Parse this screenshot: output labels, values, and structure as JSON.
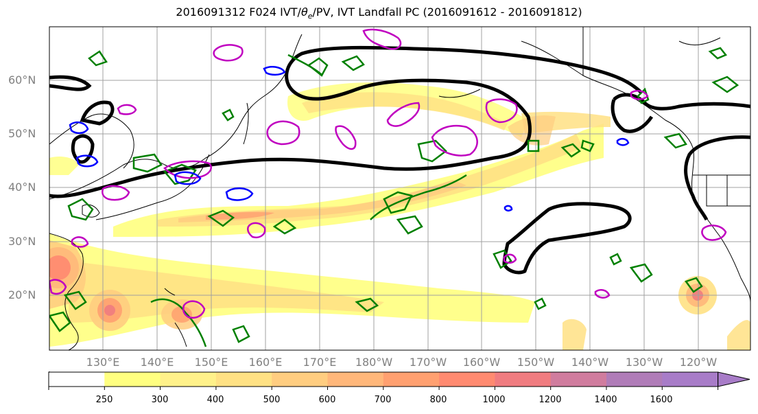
{
  "title": {
    "prefix": "2016091312 F024 IVT/",
    "theta": "θ",
    "theta_sub": "e",
    "suffix": "/PV, IVT Landfall PC (2016091612 - 2016091812)"
  },
  "lat_labels": [
    "60°N",
    "50°N",
    "40°N",
    "30°N",
    "20°N"
  ],
  "lon_labels": [
    "130°E",
    "140°E",
    "150°E",
    "160°E",
    "170°E",
    "180°W",
    "170°W",
    "160°W",
    "150°W",
    "140°W",
    "130°W",
    "120°W"
  ],
  "colorbar": {
    "ticks": [
      "250",
      "300",
      "400",
      "500",
      "600",
      "700",
      "800",
      "1000",
      "1200",
      "1400",
      "1600"
    ],
    "colors": [
      "#ffffff",
      "#ffff80",
      "#fff18a",
      "#ffe184",
      "#ffcd80",
      "#ffb77a",
      "#ffa070",
      "#ff8a70",
      "#f07c80",
      "#d07c9e",
      "#b07cb8",
      "#a87cc8"
    ]
  },
  "legend_colors": {
    "ivt_contour": "#000000",
    "theta_e": "#008000",
    "pv_magenta": "#c000c0",
    "pv_blue": "#0000ff"
  }
}
